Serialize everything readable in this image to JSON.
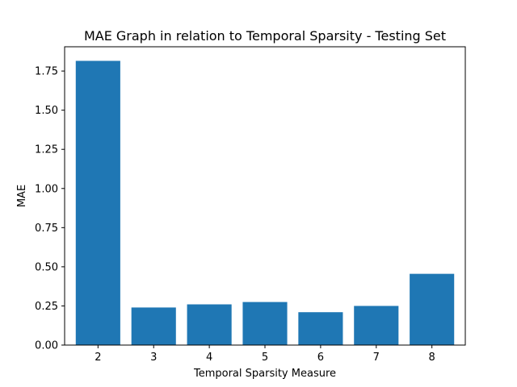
{
  "chart_data": {
    "type": "bar",
    "title": "MAE Graph in relation to Temporal Sparsity - Testing Set",
    "xlabel": "Temporal Sparsity Measure",
    "ylabel": "MAE",
    "categories": [
      "2",
      "3",
      "4",
      "5",
      "6",
      "7",
      "8"
    ],
    "values": [
      1.815,
      0.24,
      0.26,
      0.275,
      0.21,
      0.25,
      0.455
    ],
    "ylim": [
      0,
      1.905
    ],
    "yticks": [
      0.0,
      0.25,
      0.5,
      0.75,
      1.0,
      1.25,
      1.5,
      1.75
    ],
    "ytick_labels": [
      "0.00",
      "0.25",
      "0.50",
      "0.75",
      "1.00",
      "1.25",
      "1.50",
      "1.75"
    ],
    "grid": false,
    "bar_color": "#1f77b4"
  }
}
